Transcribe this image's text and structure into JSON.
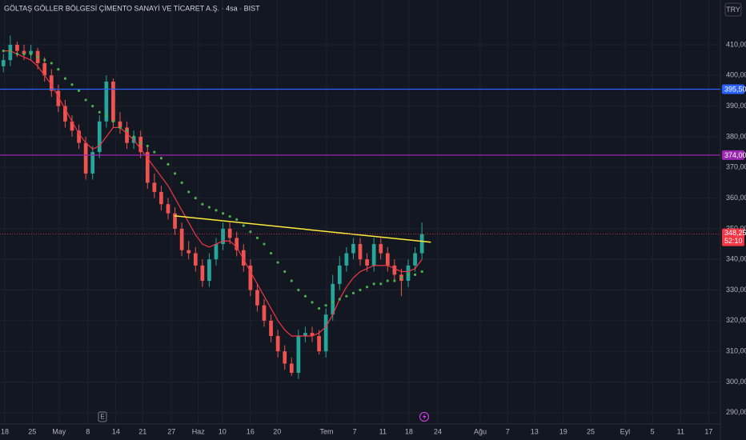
{
  "chart_data": {
    "type": "candlestick",
    "title": "GÖLTAŞ GÖLLER BÖLGESİ ÇİMENTO SANAYİ VE TİCARET A.Ş. · 4sa · BIST",
    "currency": "TRY",
    "earnings_marker": "E",
    "up_color": "#26a69a",
    "down_color": "#ef5350",
    "open": [
      403,
      405,
      410,
      408,
      407,
      408,
      404,
      400,
      395,
      390,
      385,
      382,
      378,
      368,
      375,
      385,
      398,
      385,
      383,
      378,
      380,
      375,
      365,
      362,
      358,
      355,
      350,
      343,
      342,
      338,
      333,
      340,
      345,
      350,
      347,
      343,
      338,
      330,
      325,
      320,
      315,
      310,
      306,
      303,
      315,
      316,
      315,
      310,
      322,
      332,
      338,
      342,
      345,
      340,
      338,
      345,
      342,
      338,
      335,
      333,
      338,
      342
    ],
    "high": [
      407,
      413,
      411,
      410,
      410,
      409,
      406,
      402,
      397,
      392,
      387,
      384,
      380,
      377,
      387,
      400,
      399,
      388,
      385,
      382,
      382,
      377,
      368,
      364,
      360,
      357,
      352,
      346,
      344,
      340,
      342,
      347,
      352,
      352,
      349,
      345,
      340,
      332,
      327,
      322,
      317,
      312,
      308,
      317,
      318,
      318,
      317,
      324,
      335,
      341,
      344,
      347,
      347,
      342,
      347,
      347,
      344,
      340,
      337,
      340,
      344,
      352
    ],
    "low": [
      401,
      403,
      406,
      405,
      405,
      402,
      398,
      393,
      388,
      383,
      380,
      376,
      366,
      366,
      373,
      383,
      383,
      381,
      376,
      376,
      373,
      363,
      360,
      356,
      353,
      348,
      341,
      340,
      336,
      331,
      331,
      338,
      343,
      345,
      341,
      336,
      328,
      323,
      318,
      313,
      308,
      304,
      302,
      301,
      313,
      313,
      309,
      308,
      320,
      330,
      336,
      340,
      338,
      336,
      336,
      340,
      336,
      333,
      328,
      331,
      336,
      340
    ],
    "close": [
      405,
      410,
      408,
      407,
      408,
      404,
      400,
      395,
      390,
      385,
      382,
      378,
      368,
      375,
      385,
      398,
      385,
      383,
      378,
      380,
      375,
      365,
      362,
      358,
      355,
      350,
      343,
      342,
      338,
      333,
      340,
      345,
      350,
      347,
      343,
      338,
      330,
      325,
      320,
      315,
      310,
      306,
      303,
      315,
      316,
      315,
      310,
      322,
      332,
      338,
      342,
      345,
      340,
      338,
      345,
      342,
      338,
      335,
      333,
      338,
      342,
      348.25
    ],
    "ma_lines": [
      {
        "color": "#f23645",
        "style": "solid",
        "values": [
          408,
          408,
          407,
          406,
          405,
          403,
          400,
          397,
          393,
          389,
          385,
          381,
          378,
          376,
          377,
          380,
          383,
          383,
          381,
          379,
          376,
          373,
          370,
          367,
          364,
          360,
          356,
          352,
          348,
          345,
          344,
          345,
          346,
          346,
          344,
          340,
          336,
          332,
          328,
          324,
          320,
          317,
          315,
          315,
          315,
          315,
          316,
          318,
          322,
          327,
          331,
          334,
          336,
          337,
          338,
          338,
          338,
          337,
          336,
          336,
          337,
          340
        ]
      },
      {
        "color": "#4caf50",
        "style": "dotted",
        "values": [
          408,
          408,
          407,
          407,
          407,
          406,
          405,
          404,
          402,
          399,
          397,
          395,
          392,
          390,
          388,
          387,
          385,
          383,
          382,
          380,
          378,
          377,
          375,
          373,
          371,
          368,
          365,
          362,
          360,
          358,
          357,
          356,
          355,
          354,
          353,
          351,
          349,
          347,
          345,
          342,
          339,
          336,
          333,
          330,
          328,
          326,
          324,
          325,
          326,
          327,
          328,
          329,
          330,
          331,
          332,
          332,
          333,
          333,
          334,
          335,
          335,
          336
        ]
      }
    ],
    "trendline": {
      "color": "#ffeb3b",
      "x": [
        24.9,
        62.3
      ],
      "y": [
        354.2,
        345.6
      ]
    },
    "hlines": [
      {
        "value": 395.5,
        "label": "395,50",
        "color": "#2962ff"
      },
      {
        "value": 374,
        "label": "374,00",
        "color": "#9c27b0"
      }
    ],
    "last_price": {
      "value": 348.25,
      "label": "348,25",
      "countdown": "52:10",
      "color": "#f23645"
    },
    "xlim": [
      -0.5,
      104.5
    ],
    "xticks": [
      {
        "value": 0.2,
        "label": "18"
      },
      {
        "value": 4.2,
        "label": "25"
      },
      {
        "value": 8.1,
        "label": "May"
      },
      {
        "value": 12.3,
        "label": "8"
      },
      {
        "value": 16.4,
        "label": "14"
      },
      {
        "value": 20.3,
        "label": "21"
      },
      {
        "value": 24.5,
        "label": "27"
      },
      {
        "value": 28.4,
        "label": "Haz"
      },
      {
        "value": 31.9,
        "label": "10"
      },
      {
        "value": 36.0,
        "label": "16"
      },
      {
        "value": 39.9,
        "label": "20"
      },
      {
        "value": 47.1,
        "label": "Tem"
      },
      {
        "value": 51.2,
        "label": "7"
      },
      {
        "value": 55.3,
        "label": "11"
      },
      {
        "value": 59.1,
        "label": "18"
      },
      {
        "value": 63.3,
        "label": "24"
      },
      {
        "value": 69.5,
        "label": "Ağu"
      },
      {
        "value": 73.5,
        "label": "7"
      },
      {
        "value": 77.4,
        "label": "13"
      },
      {
        "value": 81.6,
        "label": "19"
      },
      {
        "value": 85.6,
        "label": "25"
      },
      {
        "value": 90.6,
        "label": "Eyl"
      },
      {
        "value": 94.6,
        "label": "5"
      },
      {
        "value": 98.7,
        "label": "11"
      },
      {
        "value": 102.8,
        "label": "17"
      }
    ],
    "ylim": [
      286.3,
      424.6
    ],
    "yticks": [
      {
        "value": 290,
        "label": "290,00"
      },
      {
        "value": 300,
        "label": "300,00"
      },
      {
        "value": 310,
        "label": "310,00"
      },
      {
        "value": 320,
        "label": "320,00"
      },
      {
        "value": 330,
        "label": "330,00"
      },
      {
        "value": 340,
        "label": "340,00"
      },
      {
        "value": 350,
        "label": "350,00"
      },
      {
        "value": 360,
        "label": "360,00"
      },
      {
        "value": 370,
        "label": "370,00"
      },
      {
        "value": 380,
        "label": "380,00"
      },
      {
        "value": 390,
        "label": "390,00"
      },
      {
        "value": 400,
        "label": "400,00"
      },
      {
        "value": 410,
        "label": "410,00"
      }
    ],
    "grid": true
  }
}
